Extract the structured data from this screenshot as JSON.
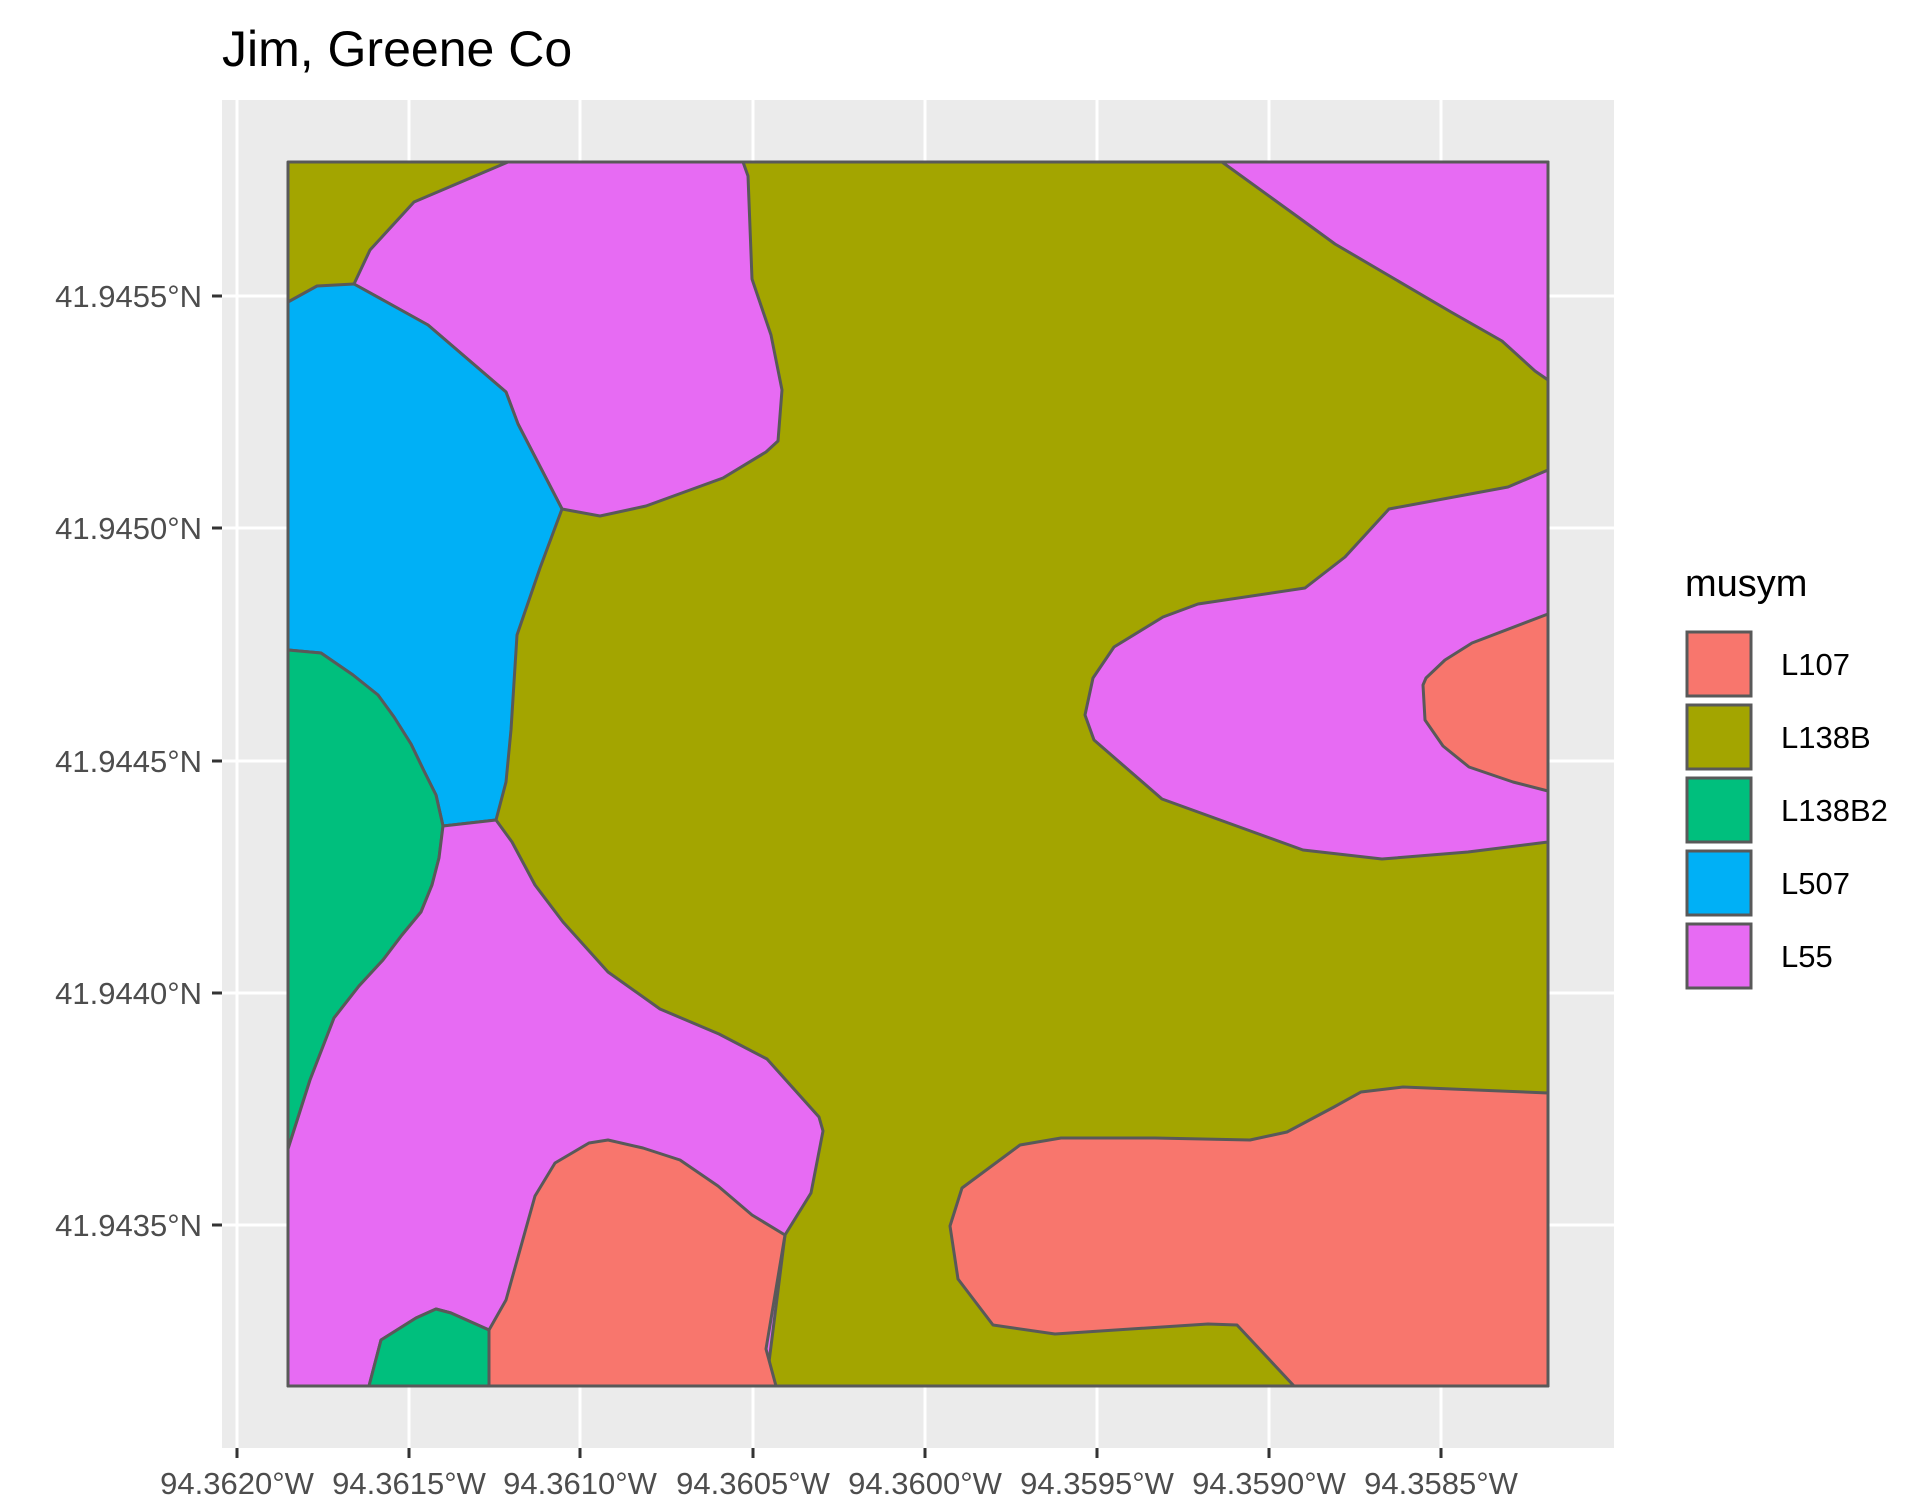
{
  "title": "Jim, Greene Co",
  "legend": {
    "title": "musym",
    "items": [
      {
        "label": "L107",
        "color": "#F8766D"
      },
      {
        "label": "L138B",
        "color": "#A3A500"
      },
      {
        "label": "L138B2",
        "color": "#00BF7D"
      },
      {
        "label": "L507",
        "color": "#00B0F6"
      },
      {
        "label": "L55",
        "color": "#E76BF3"
      }
    ]
  },
  "axes": {
    "x_ticks": [
      "94.3620°W",
      "94.3615°W",
      "94.3610°W",
      "94.3605°W",
      "94.3600°W",
      "94.3595°W",
      "94.3590°W",
      "94.3585°W"
    ],
    "y_ticks": [
      "41.9455°N",
      "41.9450°N",
      "41.9445°N",
      "41.9440°N",
      "41.9435°N"
    ]
  },
  "colors": {
    "panel_background": "#EBEBEB",
    "gridline": "#FFFFFF",
    "polygon_border": "#595959"
  }
}
